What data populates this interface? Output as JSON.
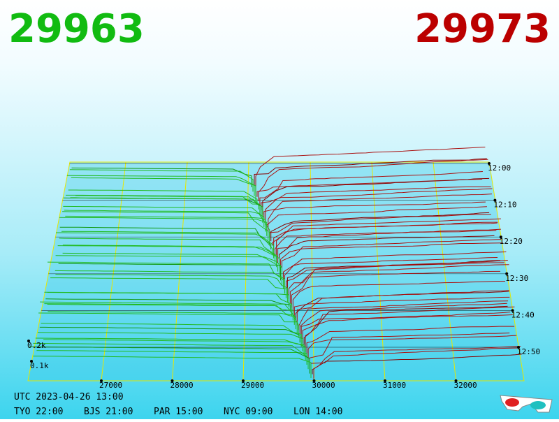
{
  "header": {
    "bid": "29963",
    "ask": "29973"
  },
  "price_axis": {
    "ticks": [
      27000,
      28000,
      29000,
      30000,
      31000,
      32000
    ]
  },
  "time_axis": {
    "labels": [
      "12:00",
      "12:10",
      "12:20",
      "12:30",
      "12:40",
      "12:50"
    ]
  },
  "volume_axis": {
    "labels": [
      "0.2k",
      "0.1k"
    ]
  },
  "footer": {
    "utc": "UTC 2023-04-26 13:00",
    "cities": [
      "TYO 22:00",
      "BJS 21:00",
      "PAR 15:00",
      "NYC 09:00",
      "LON 14:00"
    ]
  }
}
